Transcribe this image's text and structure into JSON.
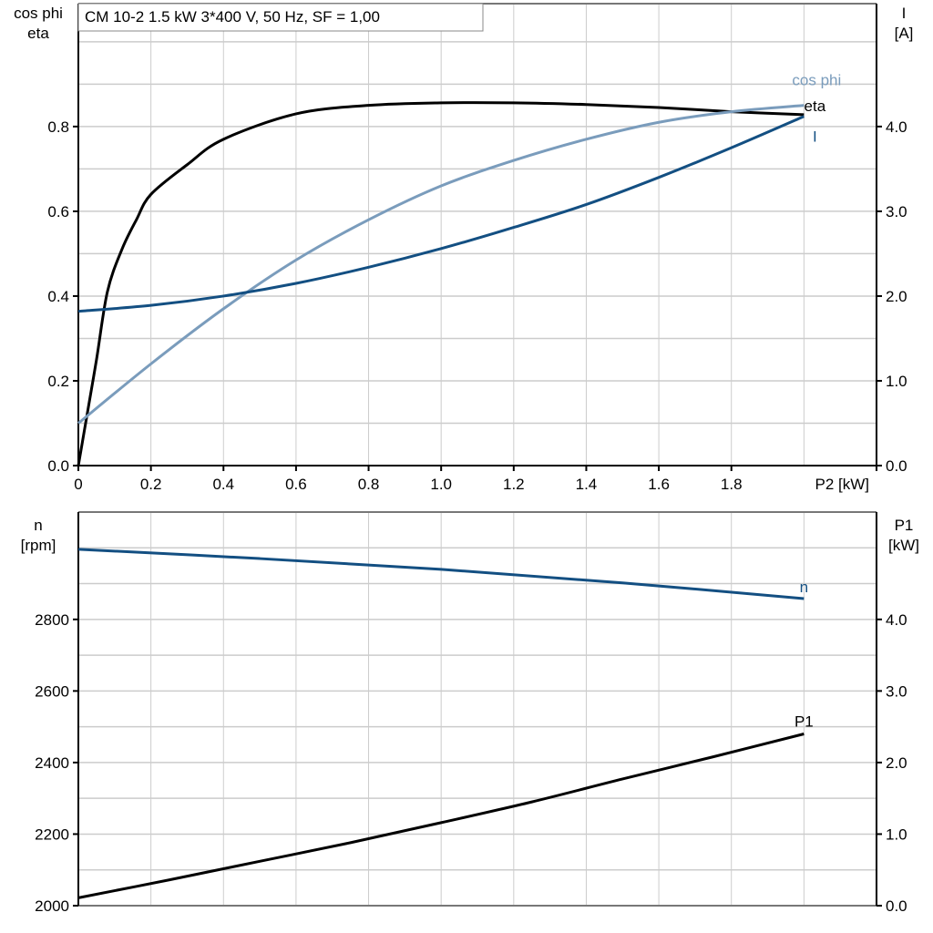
{
  "title": "CM 10-2   1.5 kW   3*400 V, 50 Hz, SF = 1,00",
  "colors": {
    "eta": "#000000",
    "cos_phi": "#7a9cbc",
    "I": "#134f82",
    "n": "#134f82",
    "P1": "#000000",
    "grid": "#cccccc"
  },
  "chart_data": [
    {
      "type": "line",
      "xlabel": "P2 [kW]",
      "ylabel_left": [
        "cos phi",
        "eta"
      ],
      "ylabel_right": [
        "I",
        "[A]"
      ],
      "xlim": [
        0,
        2.2
      ],
      "ylim_left": [
        0,
        1.09
      ],
      "ylim_right": [
        0,
        5.45
      ],
      "xticks": [
        "0",
        "0.2",
        "0.4",
        "0.6",
        "0.8",
        "1.0",
        "1.2",
        "1.4",
        "1.6",
        "1.8"
      ],
      "xtick_values": [
        0,
        0.2,
        0.4,
        0.6,
        0.8,
        1.0,
        1.2,
        1.4,
        1.6,
        1.8
      ],
      "yticks_left": [
        "0.0",
        "0.2",
        "0.4",
        "0.6",
        "0.8"
      ],
      "ytick_left_values": [
        0,
        0.2,
        0.4,
        0.6,
        0.8
      ],
      "yticks_right": [
        "0.0",
        "1.0",
        "2.0",
        "3.0",
        "4.0"
      ],
      "ytick_right_values": [
        0,
        1,
        2,
        3,
        4
      ],
      "grid": true,
      "series": [
        {
          "name": "eta",
          "axis": "left",
          "x": [
            0,
            0.02,
            0.05,
            0.08,
            0.12,
            0.16,
            0.2,
            0.3,
            0.4,
            0.6,
            0.8,
            1.0,
            1.2,
            1.4,
            1.6,
            1.8,
            2.0
          ],
          "y": [
            0,
            0.1,
            0.25,
            0.41,
            0.51,
            0.58,
            0.64,
            0.71,
            0.77,
            0.83,
            0.85,
            0.856,
            0.856,
            0.852,
            0.845,
            0.835,
            0.828
          ]
        },
        {
          "name": "cos phi",
          "axis": "left",
          "x": [
            0,
            0.2,
            0.4,
            0.6,
            0.8,
            1.0,
            1.2,
            1.4,
            1.6,
            1.8,
            2.0
          ],
          "y": [
            0.1,
            0.24,
            0.37,
            0.485,
            0.58,
            0.66,
            0.72,
            0.77,
            0.81,
            0.835,
            0.85
          ]
        },
        {
          "name": "I",
          "axis": "right",
          "x": [
            0,
            0.2,
            0.4,
            0.6,
            0.8,
            1.0,
            1.2,
            1.4,
            1.6,
            1.8,
            2.0
          ],
          "y": [
            1.82,
            1.89,
            2.0,
            2.15,
            2.34,
            2.56,
            2.81,
            3.08,
            3.4,
            3.75,
            4.12
          ]
        }
      ]
    },
    {
      "type": "line",
      "ylabel_left": [
        "n",
        "[rpm]"
      ],
      "ylabel_right": [
        "P1",
        "[kW]"
      ],
      "xlim": [
        0,
        2.2
      ],
      "ylim_left": [
        2000,
        3100
      ],
      "ylim_right": [
        0,
        5.5
      ],
      "yticks_left": [
        "2000",
        "2200",
        "2400",
        "2600",
        "2800"
      ],
      "ytick_left_values": [
        2000,
        2200,
        2400,
        2600,
        2800
      ],
      "yticks_right": [
        "0.0",
        "1.0",
        "2.0",
        "3.0",
        "4.0"
      ],
      "ytick_right_values": [
        0,
        1,
        2,
        3,
        4
      ],
      "grid": true,
      "series": [
        {
          "name": "n",
          "axis": "left",
          "x": [
            0,
            0.5,
            1.0,
            1.5,
            2.0
          ],
          "y": [
            2996,
            2970,
            2940,
            2902,
            2858
          ]
        },
        {
          "name": "P1",
          "axis": "right",
          "x": [
            0,
            0.25,
            0.5,
            0.75,
            1.0,
            1.25,
            1.5,
            1.75,
            2.0
          ],
          "y": [
            0.11,
            0.36,
            0.62,
            0.88,
            1.16,
            1.45,
            1.77,
            2.08,
            2.4
          ]
        }
      ]
    }
  ]
}
